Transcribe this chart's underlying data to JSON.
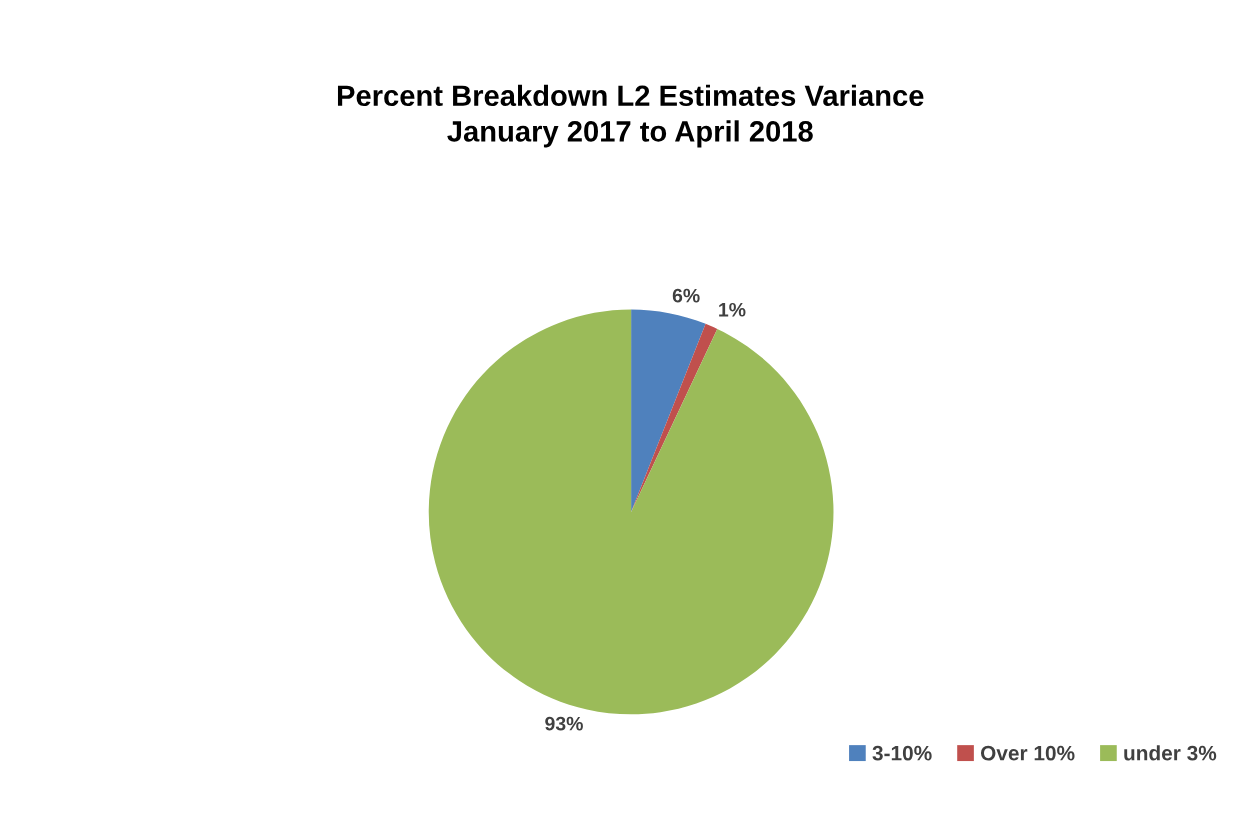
{
  "chart_data": {
    "type": "pie",
    "title": "Percent Breakdown L2 Estimates Variance\nJanuary 2017 to April 2018",
    "categories": [
      "3-10%",
      "Over 10%",
      "under 3%"
    ],
    "values": [
      6,
      1,
      93
    ],
    "colors": [
      "#4f81bd",
      "#c0504d",
      "#9bbb59"
    ],
    "value_labels": [
      "6%",
      "1%",
      "93%"
    ],
    "legend": "bottom right"
  }
}
